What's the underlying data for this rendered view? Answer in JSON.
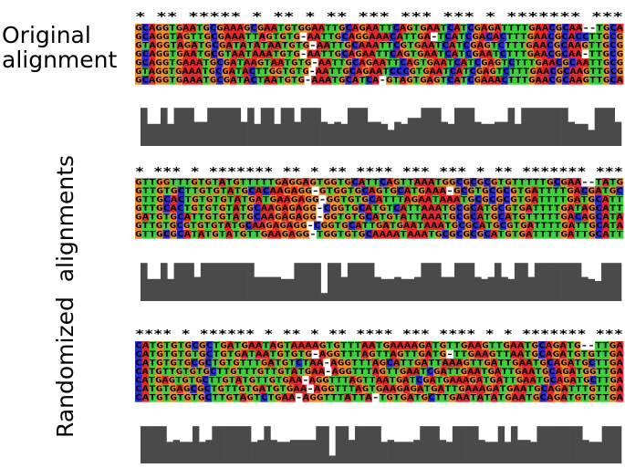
{
  "labels": {
    "original": [
      "Original",
      "alignment"
    ],
    "randomized": "Randomized  alignments"
  },
  "colors": {
    "A": "#e8282a",
    "C": "#2a2ad2",
    "G": "#ef8c2e",
    "T": "#3cd03c",
    "gap": "#ffffff",
    "bar": "#4a4a4a"
  },
  "panels": [
    {
      "id": "original",
      "stars": "* **     ***** *       ** * **   ***           ***    ***         *  *******    ***",
      "rows": [
        "GCAGGTGAATGCGAAAGCGAATGTGGAATTGCAGAATTCAGTGAATCATCGAGATTTTGAACGCAA--TGCA",
        "GCAGGTAGTTGCGAAATTAGTGTG-AATTGCAGGAAACATTGA-TCATCGACACTTTGAACGCACCTTGCG",
        "GTAGGTAGATGCGATATATAATGTG-AATTGCAAATTCGTGAATCATCGAGTCTTTGAACGCAAGTTGCG",
        "GCAGGTGAATGCGTAATAAATGTG-AATTGCAGAATTCAGTGAATCATCGAATCTTTGAACGCAA-TTGCG",
        "GCAGGTGAAATGCGATAAGTAATGTG-AATTGCAGAATTCAGTGAATCATCGAGTCTTTGAACGCAATTGCG",
        "GTAGGTGAAATGCGATACTTGGTGTG-AATTGCAGAATCCCGTGAATCATCGAGTCTTTGAACGCAAGTTGCG",
        "GCAGGTGAAATGCGATACTAATGTG-AAATGCATCA-GTAGTGAGTCATCGAAACTTTGAACGCAAGTTGCA"
      ],
      "conservation": [
        0.95,
        0.55,
        0.55,
        0.95,
        0.55,
        0.95,
        0.95,
        0.95,
        0.6,
        0.6,
        0.95,
        0.95,
        0.95,
        0.95,
        0.95,
        0.6,
        0.95,
        0.55,
        0.95,
        0.95,
        0.55,
        0.95,
        0.95,
        0.6,
        0.95,
        0.95,
        0.95,
        0.6,
        0.55,
        0.6,
        0.55,
        0.95,
        0.95,
        0.95,
        0.6,
        0.6,
        0.55,
        0.4,
        0.6,
        0.55,
        0.7,
        0.7,
        0.95,
        0.95,
        0.95,
        0.6,
        0.55,
        0.95,
        0.95,
        0.95,
        0.6,
        0.55,
        0.55,
        0.6,
        0.6,
        0.95,
        0.55,
        0.95,
        0.95,
        0.95,
        0.95,
        0.95,
        0.95,
        0.95,
        0.6,
        0.55,
        0.55,
        0.4,
        0.95,
        0.95,
        0.95,
        0.6
      ]
    },
    {
      "id": "randomized-1",
      "stars": "* *** *   *******       ** * ** ****         ***    ***    *    **   *******    ***",
      "rows": [
        "GTTGGTTTGTGTATGTTTTTGAGGAGTGGTGCATTCAGTTAAATGGCGCGCGTGTTTTTGCGAA--TATG",
        "GTTGTGCTTGTGTATGCACAAGAGG-GTGGTGCAGTGCATGAAA-GCGTGCGCGTGATTTTGACGATGC",
        "GTTGCACTGTGTGTATGATGAAGAGG-GGTGTGCATTTAGAATAAATGCGCGCGTGATTTTGATGCATT",
        "GTTGCACTGTGTGTATGCAAGAGAGG-CGGTGCATGTCATTAAATGCGCATGCGTGATTTTGATAGCATT",
        "GATGTGCATTGTGTATGCAAGAGAGG-GGTGTGCATGTATTAAATGCGCATGCATGTTTTTGACAGCATA",
        "GTTGTGCGTGTGTATGCAAGAGAGG-CGGTGCATTGATGAATAAATGCGCATGCGTGATTTTGATTGCATA",
        "GTTGCGCATATGTATGTTGAAGAGG-TGGTGTGCAAAATAAATGCGCGCGCATGTGATTTTGATTGCATT"
      ],
      "conservation": [
        0.95,
        0.55,
        0.55,
        0.95,
        0.55,
        0.95,
        0.95,
        0.95,
        0.6,
        0.95,
        0.95,
        0.95,
        0.95,
        0.95,
        0.95,
        0.95,
        0.95,
        0.6,
        0.6,
        0.6,
        0.6,
        0.55,
        0.55,
        0.95,
        0.95,
        0.95,
        0.95,
        0.2,
        0.95,
        0.95,
        0.6,
        0.95,
        0.95,
        0.95,
        0.95,
        0.6,
        0.55,
        0.55,
        0.6,
        0.55,
        0.55,
        0.6,
        0.95,
        0.95,
        0.95,
        0.6,
        0.6,
        0.95,
        0.95,
        0.95,
        0.6,
        0.55,
        0.6,
        0.95,
        0.6,
        0.55,
        0.95,
        0.95,
        0.6,
        0.95,
        0.95,
        0.95,
        0.95,
        0.95,
        0.95,
        0.95,
        0.6,
        0.55,
        0.5,
        0.95,
        0.95,
        0.95
      ]
    },
    {
      "id": "randomized-2",
      "stars": "****    *  ******  *       ** * ** ****         ***    ****    * *    *******    ***",
      "rows": [
        "CATGTGTGCGCTGATGAATAGTAAAAGTGTTTAATGAAAAGATGTTGAAGTTGAATGCAGATG--TTGA",
        "CATGTGTGTGCTGTGATAATGTGTG-AGGTTTAGTTAGTTGATG-TTGAAGTTAATGCAGATGTGTTGA",
        "CATGTGTGCGCTGTGTTTGATGTCTAA-AGGTTTAGCATTGATTAAAGTTGATTGAATGCAGATGCTTGA",
        "CATGTTGTGTGCTTGTTTGTTGTATGAA-AGGTTTAGTTGAATCGATTGAATGATTGAATGCAGATGGTTGA",
        "CATGAGTGTGCTTGTATGTTGTGAA-AGGTTTAGTTAATGATCGATGAAAGATGATTGAATGCAGATGCTTGA",
        "CATGTGAGCGCTGTTGTGATGTGAA-AGGTTTAGTGAAGAGATGATTGAAAGATGAATGCAGATTTGTTGA",
        "CATGTGTGTGCTTGTAGTCTGAA-AGGTTTATTA-TGTGATGCTTGAATATATGAATGCAGATGTGTTGA"
      ],
      "conservation": [
        0.95,
        0.95,
        0.95,
        0.95,
        0.55,
        0.6,
        0.55,
        0.55,
        0.95,
        0.55,
        0.6,
        0.95,
        0.95,
        0.95,
        0.95,
        0.95,
        0.95,
        0.55,
        0.6,
        0.95,
        0.6,
        0.55,
        0.55,
        0.6,
        0.6,
        0.6,
        0.6,
        0.95,
        0.95,
        0.2,
        0.95,
        0.95,
        0.6,
        0.95,
        0.95,
        0.95,
        0.95,
        0.55,
        0.6,
        0.55,
        0.55,
        0.55,
        0.6,
        0.95,
        0.95,
        0.95,
        0.6,
        0.55,
        0.95,
        0.95,
        0.95,
        0.95,
        0.6,
        0.55,
        0.55,
        0.95,
        0.55,
        0.95,
        0.6,
        0.6,
        0.55,
        0.95,
        0.95,
        0.95,
        0.95,
        0.95,
        0.95,
        0.95,
        0.6,
        0.55,
        0.55,
        0.95,
        0.95,
        0.95
      ]
    }
  ]
}
